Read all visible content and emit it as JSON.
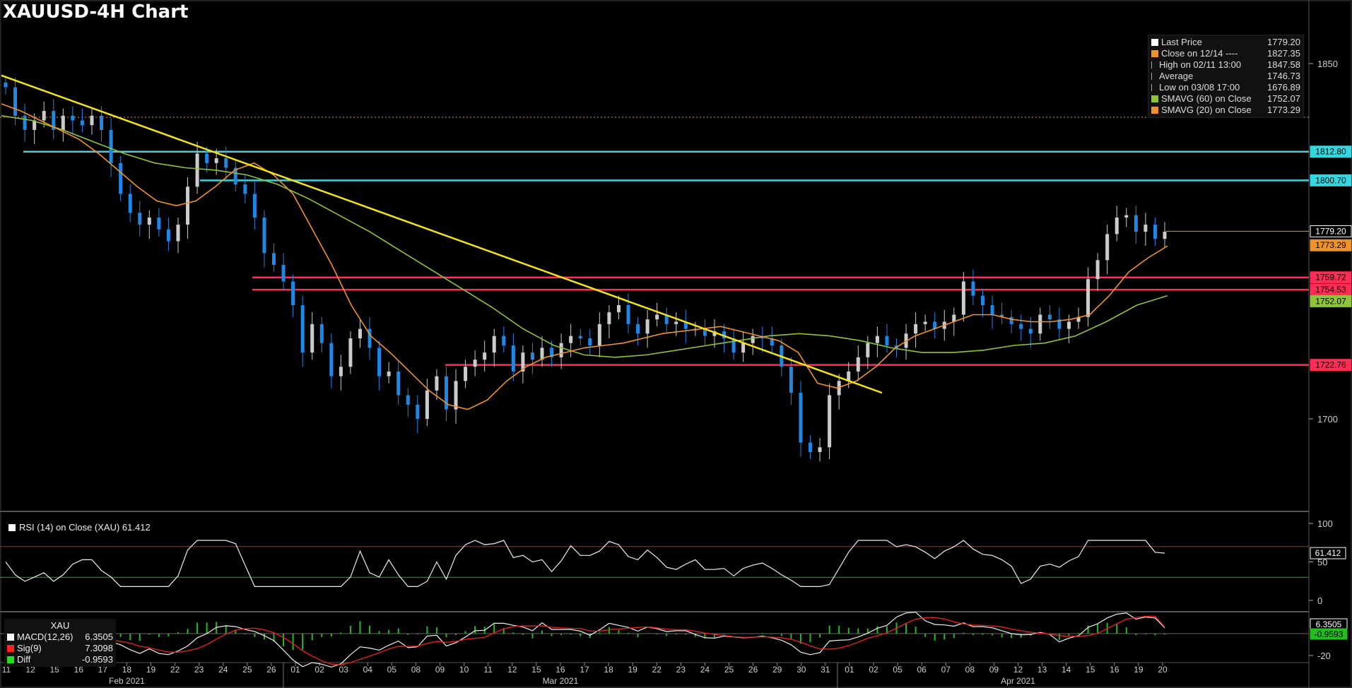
{
  "title": "XAUUSD-4H Chart",
  "colors": {
    "bg": "#000000",
    "up": "#cccccc",
    "down": "#1e88e5",
    "sma20": "#f0922a",
    "sma60": "#8fc43a",
    "trend": "#f5e31a",
    "cyan": "#36d6e0",
    "red": "#ff2d55",
    "grid": "#3a3a3a",
    "text": "#dddddd"
  },
  "legend": [
    {
      "label": "Last Price",
      "value": "1779.20",
      "swatch": "#ffffff",
      "icon": "square-icon"
    },
    {
      "label": "Close on 12/14 ----",
      "value": "1827.35",
      "swatch": "#f0922a",
      "icon": "square-icon"
    },
    {
      "label": "High on 02/11 13:00",
      "value": "1847.58",
      "swatch": "",
      "icon": "high-marker-icon"
    },
    {
      "label": "Average",
      "value": "1746.73",
      "swatch": "",
      "icon": "average-marker-icon"
    },
    {
      "label": "Low on 03/08 17:00",
      "value": "1676.89",
      "swatch": "",
      "icon": "low-marker-icon"
    },
    {
      "label": "SMAVG (60)  on Close",
      "value": "1752.07",
      "swatch": "#8fc43a",
      "icon": "square-icon"
    },
    {
      "label": "SMAVG (20)  on Close",
      "value": "1773.29",
      "swatch": "#f0922a",
      "icon": "square-icon"
    }
  ],
  "price_tags": [
    {
      "value": "1812.80",
      "color": "#36d6e0",
      "text_color": "#000"
    },
    {
      "value": "1800.70",
      "color": "#36d6e0",
      "text_color": "#000"
    },
    {
      "value": "1779.20",
      "color": "#000000",
      "text_color": "#ffffff",
      "border": "#ffffff"
    },
    {
      "value": "1773.29",
      "color": "#f0922a",
      "text_color": "#000"
    },
    {
      "value": "1759.72",
      "color": "#ff2d55",
      "text_color": "#000"
    },
    {
      "value": "1754.53",
      "color": "#ff2d55",
      "text_color": "#000"
    },
    {
      "value": "1752.07",
      "color": "#8fc43a",
      "text_color": "#000"
    },
    {
      "value": "1722.76",
      "color": "#ff2d55",
      "text_color": "#000"
    }
  ],
  "rsi": {
    "label": "RSI (14)  on Close (XAU) 61.412",
    "value_tag": "61.412",
    "ticks": [
      "100",
      "50",
      "0"
    ]
  },
  "macd": {
    "title": "XAU",
    "rows": [
      {
        "label": "MACD(12,26)",
        "value": "6.3505",
        "swatch": "#ffffff"
      },
      {
        "label": "Sig(9)",
        "value": "7.3098",
        "swatch": "#ff2020"
      },
      {
        "label": "Diff",
        "value": "-0.9593",
        "swatch": "#22dd22"
      }
    ],
    "value_tags": [
      "6.3505",
      "-0.9593"
    ],
    "ticks": [
      "-20"
    ]
  },
  "chart_data": {
    "type": "candlestick",
    "title": "XAUUSD-4H Chart",
    "y_ticks": [
      1850,
      1700
    ],
    "ylim": [
      1676,
      1860
    ],
    "x_labels": [
      "11",
      "12",
      "15",
      "16",
      "17",
      "18",
      "19",
      "22",
      "23",
      "24",
      "25",
      "26",
      "01",
      "02",
      "03",
      "04",
      "05",
      "08",
      "09",
      "10",
      "11",
      "12",
      "15",
      "16",
      "17",
      "18",
      "19",
      "22",
      "23",
      "24",
      "25",
      "26",
      "29",
      "30",
      "31",
      "01",
      "02",
      "05",
      "06",
      "07",
      "08",
      "09",
      "12",
      "13",
      "14",
      "15",
      "16",
      "19",
      "20"
    ],
    "months": [
      "Feb 2021",
      "Mar 2021",
      "Apr 2021"
    ],
    "close_path": [
      1840,
      1828,
      1822,
      1826,
      1830,
      1822,
      1828,
      1826,
      1824,
      1828,
      1822,
      1808,
      1795,
      1787,
      1782,
      1785,
      1780,
      1775,
      1782,
      1798,
      1812,
      1808,
      1810,
      1806,
      1799,
      1795,
      1785,
      1770,
      1765,
      1758,
      1748,
      1728,
      1740,
      1732,
      1718,
      1722,
      1734,
      1738,
      1730,
      1718,
      1720,
      1710,
      1706,
      1700,
      1712,
      1718,
      1704,
      1716,
      1722,
      1725,
      1728,
      1735,
      1731,
      1720,
      1728,
      1725,
      1730,
      1726,
      1732,
      1735,
      1734,
      1731,
      1740,
      1745,
      1748,
      1740,
      1736,
      1742,
      1744,
      1740,
      1741,
      1738,
      1738,
      1735,
      1737,
      1734,
      1728,
      1732,
      1735,
      1734,
      1731,
      1722,
      1711,
      1690,
      1686,
      1688,
      1710,
      1716,
      1720,
      1726,
      1732,
      1735,
      1731,
      1730,
      1736,
      1740,
      1741,
      1738,
      1741,
      1744,
      1758,
      1752,
      1748,
      1744,
      1743,
      1740,
      1738,
      1736,
      1744,
      1742,
      1738,
      1741,
      1743,
      1759,
      1767,
      1778,
      1785,
      1786,
      1779,
      1782,
      1776,
      1779
    ],
    "sma20": [
      1833,
      1830,
      1826,
      1822,
      1818,
      1812,
      1805,
      1798,
      1792,
      1790,
      1792,
      1798,
      1805,
      1808,
      1803,
      1795,
      1780,
      1765,
      1748,
      1735,
      1728,
      1720,
      1712,
      1706,
      1704,
      1708,
      1716,
      1722,
      1726,
      1728,
      1730,
      1731,
      1732,
      1734,
      1736,
      1737,
      1738,
      1739,
      1737,
      1735,
      1733,
      1728,
      1715,
      1713,
      1716,
      1722,
      1730,
      1735,
      1738,
      1741,
      1744,
      1744,
      1742,
      1741,
      1741,
      1742,
      1744,
      1752,
      1762,
      1768,
      1773
    ],
    "sma60": [
      1828,
      1826,
      1822,
      1817,
      1812,
      1808,
      1806,
      1805,
      1803,
      1799,
      1793,
      1786,
      1779,
      1771,
      1763,
      1755,
      1747,
      1738,
      1731,
      1727,
      1726,
      1727,
      1729,
      1731,
      1733,
      1735,
      1736,
      1735,
      1733,
      1730,
      1728,
      1728,
      1729,
      1731,
      1732,
      1735,
      1741,
      1748,
      1752
    ],
    "levels": [
      1812.8,
      1800.7,
      1759.72,
      1754.53,
      1722.76
    ],
    "dotted_level": 1827.35,
    "trendline": {
      "from": [
        "02/11",
        1845
      ],
      "to": [
        "04/02",
        1711
      ]
    },
    "last_price": 1779.2,
    "rsi_last": 61.412,
    "rsi_levels": [
      70,
      30
    ],
    "macd_last": 6.3505,
    "signal_last": 7.3098,
    "diff_last": -0.9593
  }
}
